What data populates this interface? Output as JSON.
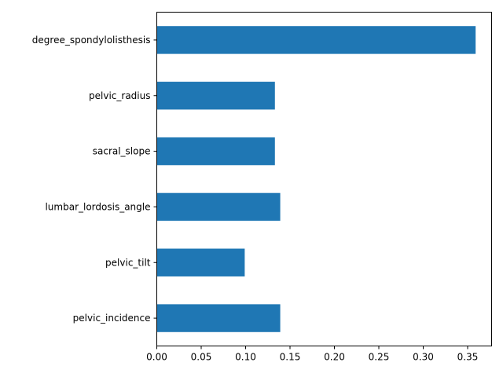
{
  "chart_data": {
    "type": "bar",
    "orientation": "horizontal",
    "categories": [
      "pelvic_incidence",
      "pelvic_tilt",
      "lumbar_lordosis_angle",
      "sacral_slope",
      "pelvic_radius",
      "degree_spondylolisthesis"
    ],
    "values": [
      0.139,
      0.099,
      0.139,
      0.133,
      0.133,
      0.359
    ],
    "xlim": [
      0,
      0.377
    ],
    "xticks": [
      "0.00",
      "0.05",
      "0.10",
      "0.15",
      "0.20",
      "0.25",
      "0.30",
      "0.35"
    ],
    "bar_color": "#1f77b4",
    "grid": false,
    "title": "",
    "xlabel": "",
    "ylabel": ""
  }
}
